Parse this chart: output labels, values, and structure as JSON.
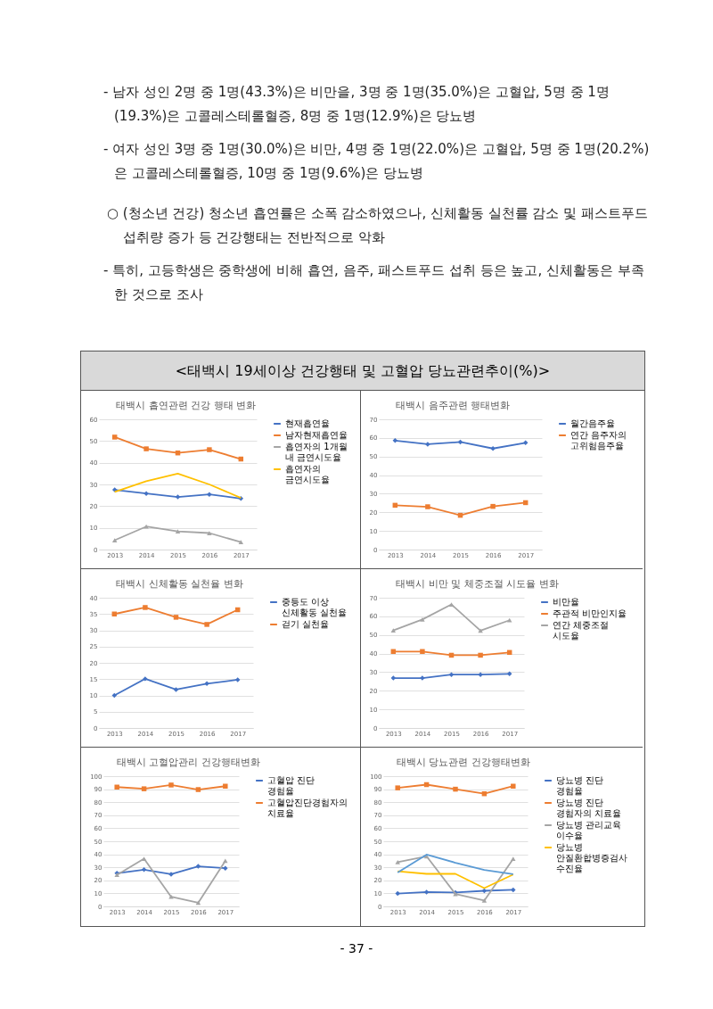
{
  "chart_data": [
    {
      "type": "other",
      "title": "<태백시 19세이상 건강행태 및 고혈압 당뇨관련추이(%)>",
      "annotations": [
        "- 남자 성인 2명 중 1명(43.3%)은 비만을, 3명 중 1명(35.0%)은 고혈압, 5명 중 1명(19.3%)은 고콜레스테롤혈증, 8명 중 1명(12.9%)은 당뇨병",
        "- 여자 성인 3명 중 1명(30.0%)은 비만, 4명 중 1명(22.0%)은 고혈압, 5명 중 1명(20.2%)은 고콜레스테롤혈증, 10명 중 1명(9.6%)은 당뇨병",
        "○ (청소년 건강) 청소년 흡연률은 소폭 감소하였으나, 신체활동 실천률 감소 및 패스트푸드 섭취량 증가 등 건강행태는 전반적으로 악화",
        "- 특히, 고등학생은 중학생에 비해 흡연, 음주, 패스트푸드 섭취 등은 높고, 신체활동은 부족한 것으로 조사",
        "- 37 -"
      ]
    },
    {
      "type": "line",
      "title": "태백시 흡연관련 건강 행태 변화",
      "categories": [
        "2013",
        "2014",
        "2015",
        "2016",
        "2017"
      ],
      "ylim": [
        0,
        60
      ],
      "yticks": [
        0,
        10,
        20,
        30,
        40,
        50,
        60
      ],
      "grid": "y",
      "legend": "right",
      "series": [
        {
          "name": "현재흡연율",
          "color": "#4472c4",
          "marker": "diamond",
          "values": [
            27.5,
            25.8,
            24.2,
            25.4,
            23.5
          ]
        },
        {
          "name": "남자현재흡연율",
          "color": "#ed7d31",
          "marker": "square",
          "values": [
            51.8,
            46.4,
            44.5,
            46.0,
            41.7
          ]
        },
        {
          "name": "흡연자의 1개월 내 금연시도율",
          "color": "#a5a5a5",
          "marker": "triangle",
          "values": [
            4.3,
            10.6,
            8.4,
            7.6,
            3.4
          ]
        },
        {
          "name": "흡연자의 금연시도율",
          "color": "#ffc000",
          "marker": "none",
          "values": [
            26.6,
            31.5,
            35.0,
            30.0,
            23.8
          ]
        }
      ]
    },
    {
      "type": "line",
      "title": "태백시 음주관련 행태변화",
      "categories": [
        "2013",
        "2014",
        "2015",
        "2016",
        "2017"
      ],
      "ylim": [
        0,
        70
      ],
      "yticks": [
        0,
        10,
        20,
        30,
        40,
        50,
        60,
        70
      ],
      "grid": "y",
      "legend": "right",
      "series": [
        {
          "name": "월간음주율",
          "color": "#4472c4",
          "marker": "diamond",
          "values": [
            58.6,
            56.6,
            57.8,
            54.3,
            57.4
          ]
        },
        {
          "name": "연간 음주자의 고위험음주율",
          "color": "#ed7d31",
          "marker": "square",
          "values": [
            23.8,
            23.0,
            18.4,
            23.2,
            25.2
          ]
        }
      ]
    },
    {
      "type": "line",
      "title": "태백시 신체활동 실천율 변화",
      "categories": [
        "2013",
        "2014",
        "2015",
        "2016",
        "2017"
      ],
      "ylim": [
        0,
        40
      ],
      "yticks": [
        0,
        5,
        10,
        15,
        20,
        25,
        30,
        35,
        40
      ],
      "grid": "y",
      "legend": "right",
      "series": [
        {
          "name": "중등도 이상 신체활동 실천율",
          "color": "#4472c4",
          "marker": "diamond",
          "values": [
            10.0,
            15.1,
            11.8,
            13.6,
            14.8
          ]
        },
        {
          "name": "걷기 실천율",
          "color": "#ed7d31",
          "marker": "square",
          "values": [
            35.0,
            37.0,
            34.0,
            31.8,
            36.3
          ]
        }
      ]
    },
    {
      "type": "line",
      "title": "태백시 비만 및 체중조절 시도율 변화",
      "categories": [
        "2013",
        "2014",
        "2015",
        "2016",
        "2017"
      ],
      "ylim": [
        0,
        70
      ],
      "yticks": [
        0,
        10,
        20,
        30,
        40,
        50,
        60,
        70
      ],
      "grid": "y",
      "legend": "right",
      "series": [
        {
          "name": "비만율",
          "color": "#4472c4",
          "marker": "diamond",
          "values": [
            26.8,
            26.8,
            28.7,
            28.7,
            29.1
          ]
        },
        {
          "name": "주관적 비만인지율",
          "color": "#ed7d31",
          "marker": "square",
          "values": [
            41.1,
            41.1,
            39.1,
            39.1,
            40.6
          ]
        },
        {
          "name": "연간 체중조절 시도율",
          "color": "#a5a5a5",
          "marker": "triangle",
          "values": [
            52.4,
            58.3,
            66.4,
            52.3,
            57.9
          ]
        }
      ]
    },
    {
      "type": "line",
      "title": "태백시 고혈압관리 건강행태변화",
      "categories": [
        "2013",
        "2014",
        "2015",
        "2016",
        "2017"
      ],
      "ylim": [
        0,
        100
      ],
      "yticks": [
        0,
        10,
        20,
        30,
        40,
        50,
        60,
        70,
        80,
        90,
        100
      ],
      "grid": "y",
      "legend": "right",
      "series": [
        {
          "name": "고혈압 진단 경험율",
          "color": "#4472c4",
          "marker": "diamond",
          "values": [
            25.5,
            28.2,
            24.7,
            30.8,
            29.3
          ]
        },
        {
          "name": "고혈압진단경험자의 치료율",
          "color": "#ed7d31",
          "marker": "square",
          "values": [
            91.6,
            90.3,
            93.2,
            89.7,
            92.3
          ]
        },
        {
          "color": "#a5a5a5",
          "marker": "triangle",
          "values": [
            24.2,
            36.6,
            7.4,
            2.8,
            35.0
          ]
        }
      ]
    },
    {
      "type": "line",
      "title": "태백시 당뇨관련 건강행태변화",
      "categories": [
        "2013",
        "2014",
        "2015",
        "2016",
        "2017"
      ],
      "ylim": [
        0,
        100
      ],
      "yticks": [
        0,
        10,
        20,
        30,
        40,
        50,
        60,
        70,
        80,
        90,
        100
      ],
      "grid": "y",
      "legend": "right",
      "series": [
        {
          "name": "당뇨병 진단 경험율",
          "color": "#4472c4",
          "marker": "diamond",
          "values": [
            9.9,
            11.0,
            10.7,
            12.0,
            12.7
          ]
        },
        {
          "name": "당뇨병 진단 경험자의 치료율",
          "color": "#ed7d31",
          "marker": "square",
          "values": [
            91.0,
            93.5,
            90.0,
            86.5,
            92.3
          ]
        },
        {
          "name": "당뇨병 관리교육 이수율",
          "color": "#a5a5a5",
          "marker": "triangle",
          "values": [
            34.0,
            38.5,
            9.5,
            4.5,
            36.5
          ]
        },
        {
          "name": "당뇨병 안질환합병증검사 수진율",
          "color": "#ffc000",
          "marker": "none",
          "values": [
            27.0,
            25.0,
            25.0,
            14.0,
            24.5
          ]
        },
        {
          "color": "#5b9bd5",
          "marker": "none",
          "values": [
            26.0,
            39.8,
            33.5,
            28.0,
            24.8
          ]
        }
      ]
    }
  ]
}
